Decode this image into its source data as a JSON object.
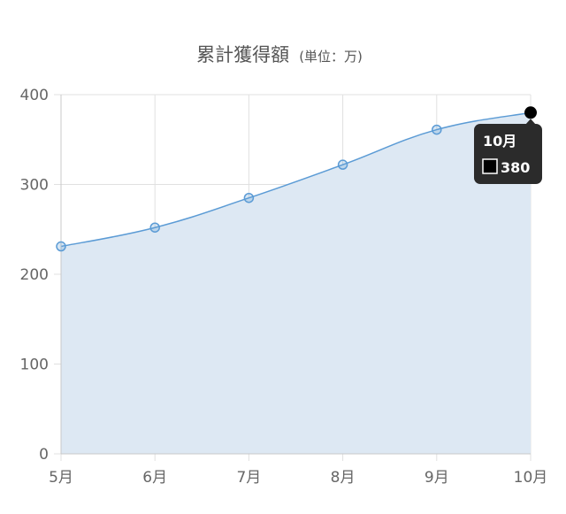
{
  "chart_data": {
    "type": "area",
    "title": "累計獲得額",
    "subtitle": "(単位：万)",
    "categories": [
      "5月",
      "6月",
      "7月",
      "8月",
      "9月",
      "10月"
    ],
    "series": [
      {
        "values": [
          231,
          252,
          285,
          322,
          361,
          380
        ]
      }
    ],
    "ylim": [
      0,
      400
    ],
    "yticks": [
      0,
      100,
      200,
      300,
      400
    ],
    "grid": true,
    "colors": {
      "line": "#5b9bd5",
      "fill": "#dde8f3",
      "grid": "#e0e0e0",
      "axis": "#c8c8c8",
      "tooltip_bg": "#2b2b2b"
    },
    "tooltip": {
      "category": "10月",
      "value": "380",
      "index": 5
    }
  }
}
